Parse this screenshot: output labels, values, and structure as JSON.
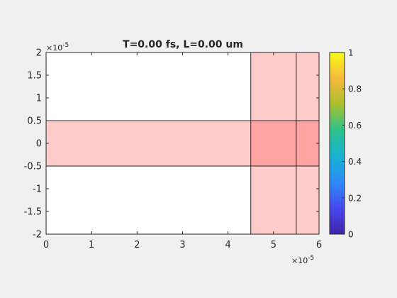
{
  "chart_data": {
    "type": "heatmap",
    "title": "T=0.00 fs, L=0.00 um",
    "xlabel": "",
    "ylabel": "",
    "xlim": [
      0,
      6e-05
    ],
    "ylim": [
      -2e-05,
      2e-05
    ],
    "x_exponent_label": "×10",
    "x_exponent_power": "-5",
    "y_exponent_label": "×10",
    "y_exponent_power": "-5",
    "x_ticks": [
      {
        "value": 0,
        "label": "0"
      },
      {
        "value": 1e-05,
        "label": "1"
      },
      {
        "value": 2e-05,
        "label": "2"
      },
      {
        "value": 3e-05,
        "label": "3"
      },
      {
        "value": 4e-05,
        "label": "4"
      },
      {
        "value": 5e-05,
        "label": "5"
      },
      {
        "value": 6e-05,
        "label": "6"
      }
    ],
    "y_ticks": [
      {
        "value": 2e-05,
        "label": "2"
      },
      {
        "value": 1.5e-05,
        "label": "1.5"
      },
      {
        "value": 1e-05,
        "label": "1"
      },
      {
        "value": 5e-06,
        "label": "0.5"
      },
      {
        "value": 0,
        "label": "0"
      },
      {
        "value": -5e-06,
        "label": "-0.5"
      },
      {
        "value": -1e-05,
        "label": "-1"
      },
      {
        "value": -1.5e-05,
        "label": "-1.5"
      },
      {
        "value": -2e-05,
        "label": "-2"
      }
    ],
    "regions": [
      {
        "name": "horizontal-band",
        "x": [
          0,
          6e-05
        ],
        "y": [
          -5e-06,
          5e-06
        ],
        "fill": "#ffcccc"
      },
      {
        "name": "vertical-band-1",
        "x": [
          4.5e-05,
          5.5e-05
        ],
        "y": [
          -2e-05,
          2e-05
        ],
        "fill": "#ffcccc"
      },
      {
        "name": "vertical-band-2",
        "x": [
          5.5e-05,
          6e-05
        ],
        "y": [
          -2e-05,
          2e-05
        ],
        "fill": "#ffcccc"
      },
      {
        "name": "overlap-1",
        "x": [
          4.5e-05,
          5.5e-05
        ],
        "y": [
          -5e-06,
          5e-06
        ],
        "fill": "#ffa3a3"
      },
      {
        "name": "overlap-2",
        "x": [
          5.5e-05,
          6e-05
        ],
        "y": [
          -5e-06,
          5e-06
        ],
        "fill": "#ffa3a3"
      }
    ],
    "boundary_lines": {
      "vertical_x": [
        4.5e-05,
        5.5e-05
      ],
      "horizontal_y": [
        -5e-06,
        5e-06
      ]
    },
    "colorbar": {
      "range": [
        0,
        1
      ],
      "ticks": [
        {
          "value": 0,
          "label": "0"
        },
        {
          "value": 0.2,
          "label": "0.2"
        },
        {
          "value": 0.4,
          "label": "0.4"
        },
        {
          "value": 0.6,
          "label": "0.6"
        },
        {
          "value": 0.8,
          "label": "0.8"
        },
        {
          "value": 1,
          "label": "1"
        }
      ],
      "colormap": "parula",
      "stops": [
        "#3e26a8",
        "#4748f0",
        "#2d8cf7",
        "#17b2d3",
        "#2dc28d",
        "#a9c02e",
        "#f7b93d",
        "#f9fb15"
      ]
    },
    "background": "#ffffff",
    "grid": false,
    "legend": "none"
  }
}
